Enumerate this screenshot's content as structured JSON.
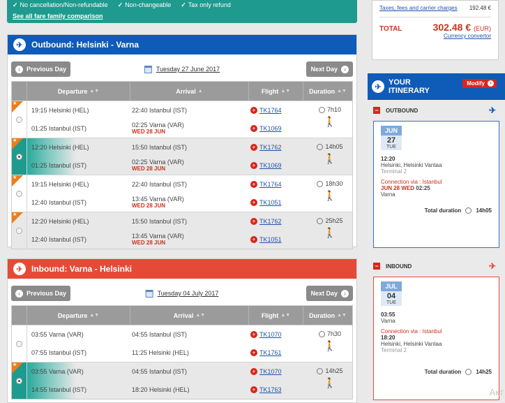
{
  "fare_banner": {
    "features": [
      "No cancellation/Non-refundable",
      "Non-changeable",
      "Tax only refund"
    ],
    "compare_link": "See all fare family comparison"
  },
  "outbound": {
    "title": "Outbound: Helsinki - Varna",
    "prev_label": "Previous Day",
    "next_label": "Next Day",
    "date": "Tuesday 27 June 2017",
    "headers": {
      "departure": "Departure",
      "arrival": "Arrival",
      "flight": "Flight",
      "duration": "Duration"
    },
    "options": [
      {
        "duration": "7h10",
        "legs": [
          {
            "dep": "19:15  Helsinki (HEL)",
            "arr": "22:40  Istanbul (IST)",
            "next_day": "",
            "flight": "TK1764"
          },
          {
            "dep": "01:25  Istanbul (IST)",
            "arr": "02:25  Varna (VAR)",
            "next_day": "WED 28 JUN",
            "flight": "TK1069"
          }
        ]
      },
      {
        "duration": "14h05",
        "legs": [
          {
            "dep": "12:20  Helsinki (HEL)",
            "arr": "15:50  Istanbul (IST)",
            "next_day": "",
            "flight": "TK1762"
          },
          {
            "dep": "01:25  Istanbul (IST)",
            "arr": "02:25  Varna (VAR)",
            "next_day": "WED 28 JUN",
            "flight": "TK1069"
          }
        ]
      },
      {
        "duration": "18h30",
        "legs": [
          {
            "dep": "19:15  Helsinki (HEL)",
            "arr": "22:40  Istanbul (IST)",
            "next_day": "",
            "flight": "TK1764"
          },
          {
            "dep": "12:40  Istanbul (IST)",
            "arr": "13:45  Varna (VAR)",
            "next_day": "WED 28 JUN",
            "flight": "TK1051"
          }
        ]
      },
      {
        "duration": "25h25",
        "legs": [
          {
            "dep": "12:20  Helsinki (HEL)",
            "arr": "15:50  Istanbul (IST)",
            "next_day": "",
            "flight": "TK1762"
          },
          {
            "dep": "12:40  Istanbul (IST)",
            "arr": "13:45  Varna (VAR)",
            "next_day": "WED 28 JUN",
            "flight": "TK1051"
          }
        ]
      }
    ]
  },
  "inbound": {
    "title": "Inbound: Varna - Helsinki",
    "prev_label": "Previous Day",
    "next_label": "Next Day",
    "date": "Tuesday 04 July 2017",
    "headers": {
      "departure": "Departure",
      "arrival": "Arrival",
      "flight": "Flight",
      "duration": "Duration"
    },
    "options": [
      {
        "duration": "7h30",
        "legs": [
          {
            "dep": "03:55  Varna (VAR)",
            "arr": "04:55  Istanbul (IST)",
            "next_day": "",
            "flight": "TK1070"
          },
          {
            "dep": "07:55  Istanbul (IST)",
            "arr": "11:25  Helsinki (HEL)",
            "next_day": "",
            "flight": "TK1761"
          }
        ]
      },
      {
        "duration": "14h25",
        "legs": [
          {
            "dep": "03:55  Varna (VAR)",
            "arr": "04:55  Istanbul (IST)",
            "next_day": "",
            "flight": "TK1070"
          },
          {
            "dep": "14:55  Istanbul (IST)",
            "arr": "18:20  Helsinki (HEL)",
            "next_day": "",
            "flight": "TK1763"
          }
        ]
      }
    ]
  },
  "price": {
    "taxes_label": "Taxes, fees and carrier charges",
    "taxes_value": "192.48 €",
    "total_label": "TOTAL",
    "total_amount": "302.48 €",
    "total_currency": "(EUR)",
    "converter": "Currency convertor"
  },
  "itinerary": {
    "title_line1": "YOUR",
    "title_line2": "ITINERARY",
    "modify": "Modify",
    "outbound": {
      "label": "OUTBOUND",
      "month": "JUN",
      "day": "27",
      "weekday": "TUE",
      "dep_time": "12:20",
      "dep_place": "Helsinki, Helsinki Vantaa",
      "dep_terminal": "Terminal 2",
      "connection": "Connection via : Istanbul",
      "conn_date": "JUN 28 WED",
      "conn_time": "02:25",
      "arr_place": "Varna",
      "total_label": "Total duration",
      "total_value": "14h05"
    },
    "inbound": {
      "label": "INBOUND",
      "month": "JUL",
      "day": "04",
      "weekday": "TUE",
      "dep_time": "03:55",
      "dep_place": "Varna",
      "connection": "Connection via : Istanbul",
      "arr_time": "18:20",
      "arr_place": "Helsinki, Helsinki Vantaa",
      "arr_terminal": "Terminal 2",
      "total_label": "Total duration",
      "total_value": "14h25"
    }
  },
  "watermark": "Акт"
}
